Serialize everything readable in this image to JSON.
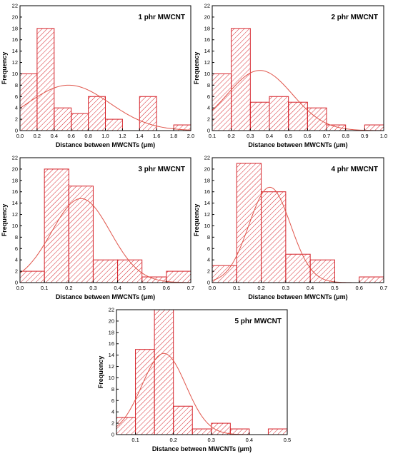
{
  "colors": {
    "bar_stroke": "#d6232a",
    "bar_hatch": "#d6232a",
    "curve": "#e0554b",
    "axis": "#000000"
  },
  "chart_data": [
    {
      "type": "bar",
      "title": "1 phr MWCNT",
      "xlabel": "Distance between MWCNTs (μm)",
      "ylabel": "Frequency",
      "xlim": [
        0.0,
        2.0
      ],
      "ylim": [
        0,
        22
      ],
      "xticks": [
        "0.0",
        "0.2",
        "0.4",
        "0.6",
        "0.8",
        "1.0",
        "1.2",
        "1.4",
        "1.6",
        "1.8",
        "2.0"
      ],
      "yticks": [
        "0",
        "2",
        "4",
        "6",
        "8",
        "10",
        "12",
        "14",
        "16",
        "18",
        "20",
        "22"
      ],
      "bins": [
        {
          "start": 0.0,
          "end": 0.2,
          "count": 10
        },
        {
          "start": 0.2,
          "end": 0.4,
          "count": 18
        },
        {
          "start": 0.4,
          "end": 0.6,
          "count": 4
        },
        {
          "start": 0.6,
          "end": 0.8,
          "count": 3
        },
        {
          "start": 0.8,
          "end": 1.0,
          "count": 6
        },
        {
          "start": 1.0,
          "end": 1.2,
          "count": 2
        },
        {
          "start": 1.4,
          "end": 1.6,
          "count": 6
        },
        {
          "start": 1.8,
          "end": 2.0,
          "count": 1
        }
      ],
      "fit": {
        "mean": 0.57,
        "sd": 0.48,
        "peak": 8.0
      }
    },
    {
      "type": "bar",
      "title": "2 phr MWCNT",
      "xlabel": "Distance between MWCNTs (μm)",
      "ylabel": "Frequency",
      "xlim": [
        0.1,
        1.0
      ],
      "ylim": [
        0,
        22
      ],
      "xticks": [
        "0.1",
        "0.2",
        "0.3",
        "0.4",
        "0.5",
        "0.6",
        "0.7",
        "0.8",
        "0.9",
        "1.0"
      ],
      "yticks": [
        "0",
        "2",
        "4",
        "6",
        "8",
        "10",
        "12",
        "14",
        "16",
        "18",
        "20",
        "22"
      ],
      "bins": [
        {
          "start": 0.1,
          "end": 0.2,
          "count": 10
        },
        {
          "start": 0.2,
          "end": 0.3,
          "count": 18
        },
        {
          "start": 0.3,
          "end": 0.4,
          "count": 5
        },
        {
          "start": 0.4,
          "end": 0.5,
          "count": 6
        },
        {
          "start": 0.5,
          "end": 0.6,
          "count": 5
        },
        {
          "start": 0.6,
          "end": 0.7,
          "count": 4
        },
        {
          "start": 0.7,
          "end": 0.8,
          "count": 1
        },
        {
          "start": 0.9,
          "end": 1.0,
          "count": 1
        }
      ],
      "fit": {
        "mean": 0.35,
        "sd": 0.17,
        "peak": 10.6
      }
    },
    {
      "type": "bar",
      "title": "3 phr MWCNT",
      "xlabel": "Distance between MWCNTs (μm)",
      "ylabel": "Frequency",
      "xlim": [
        0.0,
        0.7
      ],
      "ylim": [
        0,
        22
      ],
      "xticks": [
        "0.0",
        "0.1",
        "0.2",
        "0.3",
        "0.4",
        "0.5",
        "0.6",
        "0.7"
      ],
      "yticks": [
        "0",
        "2",
        "4",
        "6",
        "8",
        "10",
        "12",
        "14",
        "16",
        "18",
        "20",
        "22"
      ],
      "bins": [
        {
          "start": 0.0,
          "end": 0.1,
          "count": 2
        },
        {
          "start": 0.1,
          "end": 0.2,
          "count": 20
        },
        {
          "start": 0.2,
          "end": 0.3,
          "count": 17
        },
        {
          "start": 0.3,
          "end": 0.4,
          "count": 4
        },
        {
          "start": 0.4,
          "end": 0.5,
          "count": 4
        },
        {
          "start": 0.5,
          "end": 0.6,
          "count": 1
        },
        {
          "start": 0.6,
          "end": 0.7,
          "count": 2
        }
      ],
      "fit": {
        "mean": 0.25,
        "sd": 0.12,
        "peak": 14.8
      }
    },
    {
      "type": "bar",
      "title": "4 phr MWCNT",
      "xlabel": "Distance between MWCNTs (μm)",
      "ylabel": "Frequency",
      "xlim": [
        0.0,
        0.7
      ],
      "ylim": [
        0,
        22
      ],
      "xticks": [
        "0.0",
        "0.1",
        "0.2",
        "0.3",
        "0.4",
        "0.5",
        "0.6",
        "0.7"
      ],
      "yticks": [
        "0",
        "2",
        "4",
        "6",
        "8",
        "10",
        "12",
        "14",
        "16",
        "18",
        "20",
        "22"
      ],
      "bins": [
        {
          "start": 0.0,
          "end": 0.1,
          "count": 3
        },
        {
          "start": 0.1,
          "end": 0.2,
          "count": 21
        },
        {
          "start": 0.2,
          "end": 0.3,
          "count": 16
        },
        {
          "start": 0.3,
          "end": 0.4,
          "count": 5
        },
        {
          "start": 0.4,
          "end": 0.5,
          "count": 4
        },
        {
          "start": 0.6,
          "end": 0.7,
          "count": 1
        }
      ],
      "fit": {
        "mean": 0.235,
        "sd": 0.085,
        "peak": 16.8
      }
    },
    {
      "type": "bar",
      "title": "5 phr MWCNT",
      "xlabel": "Distance between MWCNTs (μm)",
      "ylabel": "Frequency",
      "xlim": [
        0.05,
        0.5
      ],
      "ylim": [
        0,
        22
      ],
      "xticks": [
        "0.1",
        "0.2",
        "0.3",
        "0.4",
        "0.5"
      ],
      "yticks": [
        "0",
        "2",
        "4",
        "6",
        "8",
        "10",
        "12",
        "14",
        "16",
        "18",
        "20",
        "22"
      ],
      "bins": [
        {
          "start": 0.05,
          "end": 0.1,
          "count": 3
        },
        {
          "start": 0.1,
          "end": 0.15,
          "count": 15
        },
        {
          "start": 0.15,
          "end": 0.2,
          "count": 22
        },
        {
          "start": 0.2,
          "end": 0.25,
          "count": 5
        },
        {
          "start": 0.25,
          "end": 0.3,
          "count": 1
        },
        {
          "start": 0.3,
          "end": 0.35,
          "count": 2
        },
        {
          "start": 0.35,
          "end": 0.4,
          "count": 1
        },
        {
          "start": 0.45,
          "end": 0.5,
          "count": 1
        }
      ],
      "fit": {
        "mean": 0.175,
        "sd": 0.058,
        "peak": 14.3
      }
    }
  ]
}
